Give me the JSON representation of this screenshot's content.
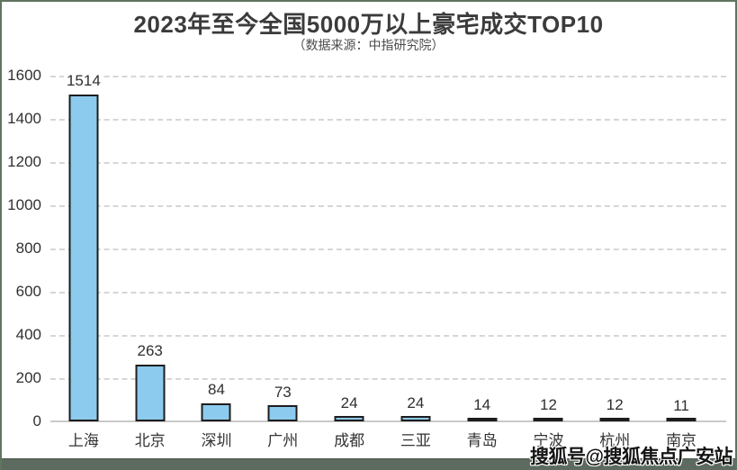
{
  "header": {
    "title": "2023年至今全国5000万以上豪宅成交TOP10",
    "subtitle": "（数据来源：中指研究院）"
  },
  "chart_data": {
    "type": "bar",
    "title": "2023年至今全国5000万以上豪宅成交TOP10",
    "subtitle": "（数据来源：中指研究院）",
    "categories": [
      "上海",
      "北京",
      "深圳",
      "广州",
      "成都",
      "三亚",
      "青岛",
      "宁波",
      "杭州",
      "南京"
    ],
    "values": [
      1514,
      263,
      84,
      73,
      24,
      24,
      14,
      12,
      12,
      11
    ],
    "data_labels": [
      1514,
      263,
      84,
      73,
      24,
      24,
      14,
      12,
      12,
      11
    ],
    "xlabel": "",
    "ylabel": "",
    "ylim": [
      0,
      1600
    ],
    "y_ticks": [
      0,
      200,
      400,
      600,
      800,
      1000,
      1200,
      1400,
      1600
    ],
    "grid": "horizontal-dashed",
    "legend": "none",
    "colors": {
      "bar_fill": "#8dcbee",
      "bar_border": "#1d1d1d",
      "gridline": "#d6d6d6",
      "axis_line": "#c9c9c9",
      "text": "#333333",
      "frame_border": "#60755f",
      "bottom_bar": "#5d6a5f"
    }
  },
  "watermark": {
    "text": "搜狐号@搜狐焦点广安站"
  }
}
